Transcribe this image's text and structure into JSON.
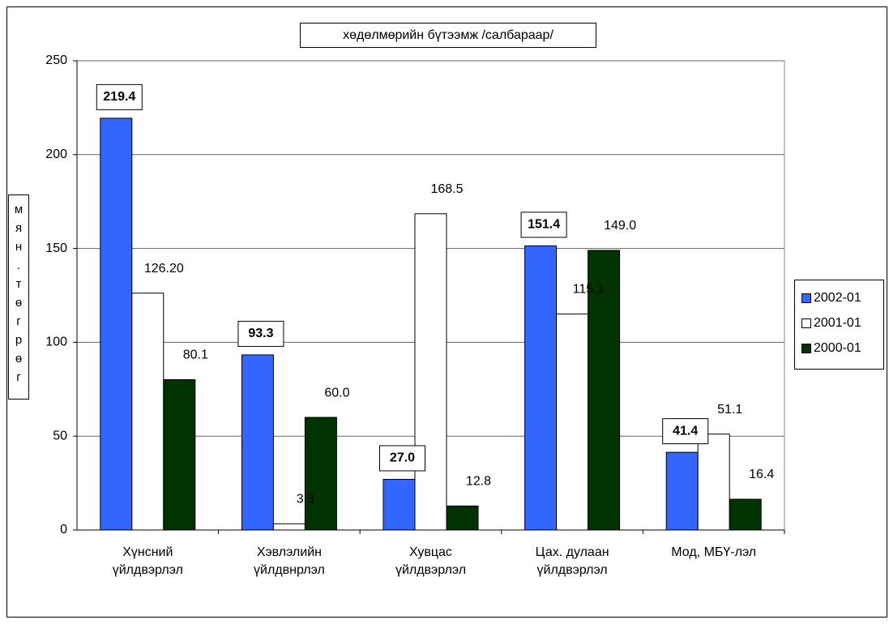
{
  "chart_data": {
    "type": "bar",
    "title": "хөдөлмөрийн бүтээмж /салбараар/",
    "y_label": "мян.төгрөг",
    "categories": [
      [
        "Хүнсний",
        "үйлдвэрлэл"
      ],
      [
        "Хэвлэлийн",
        "үйлдвнрлэл"
      ],
      [
        "Хувцас",
        "үйлдвэрлэл"
      ],
      [
        "Цах. дулаан",
        "үйлдвэрлэл"
      ],
      [
        "Мод, МБҮ-лэл"
      ]
    ],
    "series": [
      {
        "name": "2002-01",
        "color": "#3366ff",
        "values": [
          219.4,
          93.3,
          27.0,
          151.4,
          41.4
        ],
        "value_labels": [
          "219.4",
          "93.3",
          "27.0",
          "151.4",
          "41.4"
        ]
      },
      {
        "name": "2001-01",
        "color": "#ffffff",
        "values": [
          126.2,
          3.3,
          168.5,
          115.1,
          51.1
        ],
        "value_labels": [
          "126.20",
          "3.3",
          "168.5",
          "115.1",
          "51.1"
        ]
      },
      {
        "name": "2000-01",
        "color": "#003300",
        "values": [
          80.1,
          60.0,
          12.8,
          149.0,
          16.4
        ],
        "value_labels": [
          "80.1",
          "60.0",
          "12.8",
          "149.0",
          "16.4"
        ]
      }
    ],
    "ylim": [
      0,
      250
    ],
    "yticks": [
      0,
      50,
      100,
      150,
      200,
      250
    ],
    "grid": true,
    "legend": "right"
  }
}
